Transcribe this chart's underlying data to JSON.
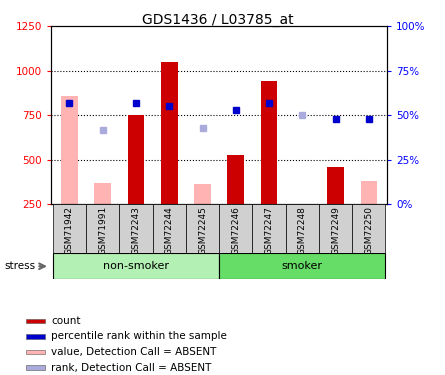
{
  "title": "GDS1436 / L03785_at",
  "samples": [
    "GSM71942",
    "GSM71991",
    "GSM72243",
    "GSM72244",
    "GSM72245",
    "GSM72246",
    "GSM72247",
    "GSM72248",
    "GSM72249",
    "GSM72250"
  ],
  "count_values": [
    null,
    null,
    750,
    1050,
    null,
    530,
    940,
    null,
    460,
    null
  ],
  "count_absent": [
    860,
    370,
    null,
    null,
    365,
    null,
    null,
    null,
    null,
    380
  ],
  "rank_present": [
    57,
    null,
    57,
    55,
    null,
    53,
    57,
    null,
    48,
    48
  ],
  "rank_absent": [
    null,
    42,
    null,
    null,
    43,
    null,
    null,
    50,
    null,
    null
  ],
  "ylim_left": [
    250,
    1250
  ],
  "ylim_right": [
    0,
    100
  ],
  "yticks_left": [
    250,
    500,
    750,
    1000,
    1250
  ],
  "yticks_right": [
    0,
    25,
    50,
    75,
    100
  ],
  "ytick_labels_right": [
    "0%",
    "25%",
    "50%",
    "75%",
    "100%"
  ],
  "hline_values": [
    500,
    750,
    1000
  ],
  "color_count": "#cc0000",
  "color_rank_present": "#0000cc",
  "color_count_absent": "#ffb3b3",
  "color_rank_absent": "#aaaadd",
  "non_smoker_indices": [
    0,
    1,
    2,
    3,
    4
  ],
  "smoker_indices": [
    5,
    6,
    7,
    8,
    9
  ],
  "group_color_light": "#b3f0b3",
  "group_color_dark": "#66dd66",
  "legend_items": [
    {
      "label": "count",
      "color": "#cc0000"
    },
    {
      "label": "percentile rank within the sample",
      "color": "#0000cc"
    },
    {
      "label": "value, Detection Call = ABSENT",
      "color": "#ffb3b3"
    },
    {
      "label": "rank, Detection Call = ABSENT",
      "color": "#aaaadd"
    }
  ]
}
